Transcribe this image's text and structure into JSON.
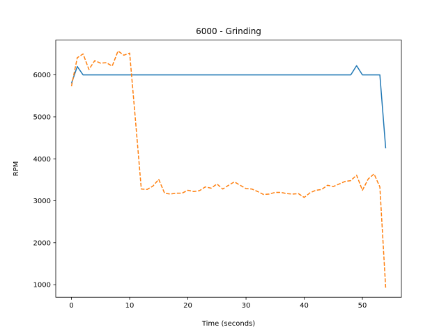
{
  "chart_data": {
    "type": "line",
    "title": "6000 - Grinding",
    "xlabel": "Time (seconds)",
    "ylabel": "RPM",
    "xlim": [
      -2.7,
      56.7
    ],
    "ylim": [
      700,
      6830
    ],
    "xticks": [
      0,
      10,
      20,
      30,
      40,
      50
    ],
    "yticks": [
      1000,
      2000,
      3000,
      4000,
      5000,
      6000
    ],
    "grid": false,
    "series": [
      {
        "color": "#1f77b4",
        "style": "solid",
        "x": [
          0,
          1,
          2,
          3,
          4,
          5,
          6,
          7,
          8,
          9,
          10,
          11,
          12,
          13,
          14,
          15,
          16,
          17,
          18,
          19,
          20,
          21,
          22,
          23,
          24,
          25,
          26,
          27,
          28,
          29,
          30,
          31,
          32,
          33,
          34,
          35,
          36,
          37,
          38,
          39,
          40,
          41,
          42,
          43,
          44,
          45,
          46,
          47,
          48,
          49,
          50,
          51,
          52,
          53,
          54
        ],
        "y": [
          5800,
          6200,
          6000,
          6000,
          6000,
          6000,
          6000,
          6000,
          6000,
          6000,
          6000,
          6000,
          6000,
          6000,
          6000,
          6000,
          6000,
          6000,
          6000,
          6000,
          6000,
          6000,
          6000,
          6000,
          6000,
          6000,
          6000,
          6000,
          6000,
          6000,
          6000,
          6000,
          6000,
          6000,
          6000,
          6000,
          6000,
          6000,
          6000,
          6000,
          6000,
          6000,
          6000,
          6000,
          6000,
          6000,
          6000,
          6000,
          6000,
          6220,
          6000,
          6000,
          6000,
          6000,
          4250
        ]
      },
      {
        "color": "#ff7f0e",
        "style": "dashed",
        "x": [
          0,
          1,
          2,
          3,
          4,
          5,
          6,
          7,
          8,
          9,
          10,
          11,
          12,
          13,
          14,
          15,
          16,
          17,
          18,
          19,
          20,
          21,
          22,
          23,
          24,
          25,
          26,
          27,
          28,
          29,
          30,
          31,
          32,
          33,
          34,
          35,
          36,
          37,
          38,
          39,
          40,
          41,
          42,
          43,
          44,
          45,
          46,
          47,
          48,
          49,
          50,
          51,
          52,
          53,
          54
        ],
        "y": [
          5730,
          6410,
          6500,
          6130,
          6340,
          6280,
          6290,
          6210,
          6570,
          6470,
          6520,
          4920,
          3280,
          3270,
          3350,
          3510,
          3180,
          3160,
          3180,
          3180,
          3250,
          3220,
          3240,
          3330,
          3300,
          3400,
          3280,
          3370,
          3450,
          3370,
          3290,
          3280,
          3220,
          3150,
          3160,
          3200,
          3200,
          3170,
          3160,
          3170,
          3080,
          3190,
          3250,
          3270,
          3370,
          3340,
          3400,
          3460,
          3480,
          3610,
          3250,
          3520,
          3640,
          3330,
          920
        ]
      }
    ]
  }
}
